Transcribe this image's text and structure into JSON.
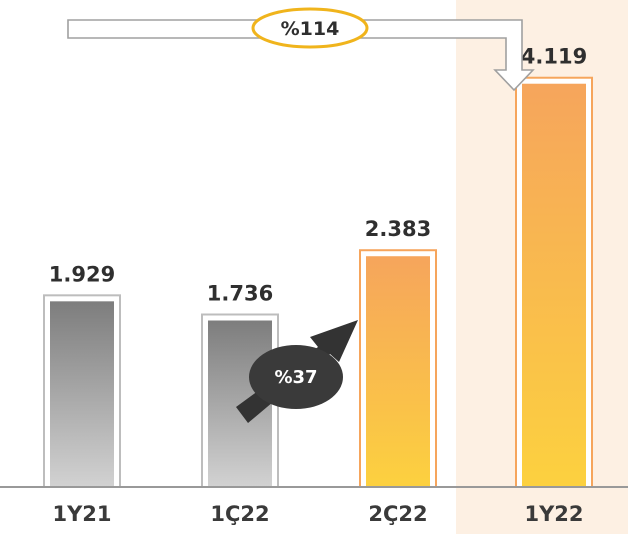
{
  "chart_data": {
    "type": "bar",
    "categories": [
      "1Y21",
      "1Ç22",
      "2Ç22",
      "1Y22"
    ],
    "values": [
      1929,
      1736,
      2383,
      4119
    ],
    "value_labels": [
      "1.929",
      "1.736",
      "2.383",
      "4.119"
    ],
    "ylim": [
      0,
      4700
    ],
    "grid": false,
    "highlighted_category": "1Y22",
    "annotations": {
      "period_growth": "%114",
      "quarter_growth": "%37"
    }
  },
  "colors": {
    "gray_top": "#7d7d7d",
    "gray_bottom": "#d2d2d2",
    "orange_top": "#f6a55c",
    "orange_bottom": "#fcd13f",
    "bar_border_gray": "#bdbdbd",
    "bar_border_orange": "#f6a55c",
    "highlight_band": "#fdf0e3",
    "badge_border": "#f0b41c",
    "growth_arrow": "#333333",
    "axis": "#999999"
  }
}
